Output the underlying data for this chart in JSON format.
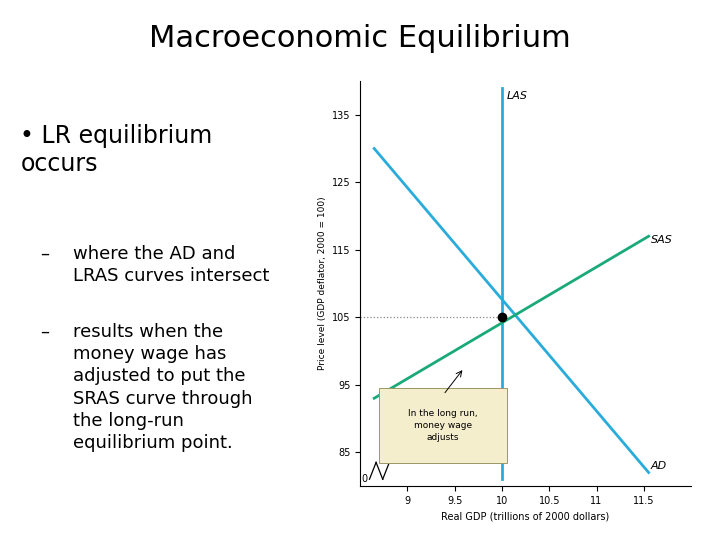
{
  "title": "Macroeconomic Equilibrium",
  "bullet_main": "LR equilibrium\noccurs",
  "bullet_sub1_dash": "–",
  "bullet_sub1_text": "where the AD and\nLRAS curves intersect",
  "bullet_sub2_dash": "–",
  "bullet_sub2_text": "results when the\nmoney wage has\nadjusted to put the\nSRAS curve through\nthe long-run\nequilibrium point.",
  "bg_color": "#ffffff",
  "text_color": "#000000",
  "chart_bg": "#ffffff",
  "lras_color": "#29acd9",
  "ad_color": "#29acd9",
  "sras_color": "#1aaa78",
  "equilibrium_x": 10.0,
  "equilibrium_y": 105,
  "xlabel": "Real GDP (trillions of 2000 dollars)",
  "ylabel": "Price level (GDP deflator, 2000 = 100)",
  "xlim": [
    8.5,
    12.0
  ],
  "ylim": [
    80,
    140
  ],
  "xticks": [
    9.0,
    9.5,
    10.0,
    10.5,
    11.0,
    11.5
  ],
  "yticks": [
    85,
    95,
    105,
    115,
    125,
    135
  ],
  "dotted_line_color": "#888888",
  "annotation_box_color": "#f5eecc",
  "annotation_text": "In the long run,\nmoney wage\nadjusts",
  "label_lras": "LAS",
  "label_sras": "SAS",
  "label_ad": "AD"
}
